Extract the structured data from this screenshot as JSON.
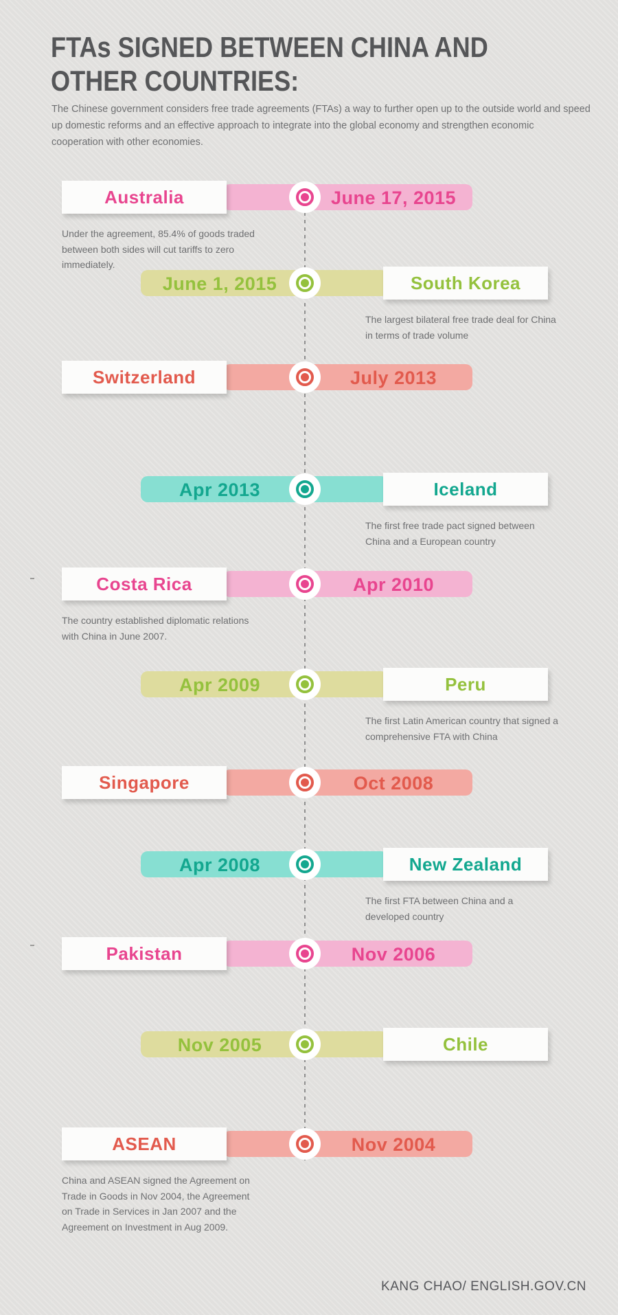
{
  "header": {
    "title": "FTAs SIGNED BETWEEN CHINA AND\nOTHER COUNTRIES:",
    "intro": "The Chinese government considers free trade agreements (FTAs) a way to further open up to the outside world and speed\nup domestic reforms and an effective approach to integrate into the global economy and strengthen economic\ncooperation with other economies."
  },
  "palette": {
    "pink": {
      "text": "#e8458f",
      "bar": "#f4b3d2"
    },
    "green": {
      "text": "#94c13d",
      "bar": "#dedc9e"
    },
    "red": {
      "text": "#e25a4d",
      "bar": "#f3a9a2"
    },
    "teal": {
      "text": "#13a78f",
      "bar": "#87dfd2"
    }
  },
  "chart_data": {
    "type": "table",
    "title": "FTAs SIGNED BETWEEN CHINA AND OTHER COUNTRIES:",
    "layout_hints": {
      "orientation": "vertical-timeline",
      "center_axis": "dotted line",
      "order": "newest-first"
    },
    "categories": [
      "Australia",
      "South Korea",
      "Switzerland",
      "Iceland",
      "Costa Rica",
      "Peru",
      "Singapore",
      "New Zealand",
      "Pakistan",
      "Chile",
      "ASEAN"
    ],
    "values": [
      "June 17, 2015",
      "June 1, 2015",
      "July 2013",
      "Apr 2013",
      "Apr 2010",
      "Apr 2009",
      "Oct 2008",
      "Apr 2008",
      "Nov 2006",
      "Nov 2005",
      "Nov 2004"
    ]
  },
  "timeline": {
    "entries": [
      {
        "country": "Australia",
        "date": "June 17, 2015",
        "country_side": "left",
        "color": "pink",
        "description": "Under the agreement, 85.4% of goods traded\nbetween both sides will cut tariffs to zero\nimmediately."
      },
      {
        "country": "South Korea",
        "date": "June 1, 2015",
        "country_side": "right",
        "color": "green",
        "description": "The largest bilateral free trade deal for China\nin terms of trade volume"
      },
      {
        "country": "Switzerland",
        "date": "July 2013",
        "country_side": "left",
        "color": "red",
        "description": ""
      },
      {
        "country": "Iceland",
        "date": "Apr 2013",
        "country_side": "right",
        "color": "teal",
        "description": "The first free trade pact signed between\nChina and a European country"
      },
      {
        "country": "Costa Rica",
        "date": "Apr 2010",
        "country_side": "left",
        "color": "pink",
        "description": "The country established diplomatic relations\nwith China in June 2007."
      },
      {
        "country": "Peru",
        "date": "Apr 2009",
        "country_side": "right",
        "color": "green",
        "description": "The first Latin American country that signed a\ncomprehensive FTA with China"
      },
      {
        "country": "Singapore",
        "date": "Oct 2008",
        "country_side": "left",
        "color": "red",
        "description": ""
      },
      {
        "country": "New Zealand",
        "date": "Apr 2008",
        "country_side": "right",
        "color": "teal",
        "description": "The first FTA between China and a\ndeveloped country"
      },
      {
        "country": "Pakistan",
        "date": "Nov 2006",
        "country_side": "left",
        "color": "pink",
        "description": ""
      },
      {
        "country": "Chile",
        "date": "Nov 2005",
        "country_side": "right",
        "color": "green",
        "description": ""
      },
      {
        "country": "ASEAN",
        "date": "Nov 2004",
        "country_side": "left",
        "color": "red",
        "description": "China and ASEAN signed the Agreement on\nTrade in Goods in Nov 2004, the Agreement\non Trade in Services in Jan 2007 and the\nAgreement on Investment in Aug 2009."
      }
    ]
  },
  "footer": {
    "credit": "KANG CHAO/ ENGLISH.GOV.CN"
  }
}
